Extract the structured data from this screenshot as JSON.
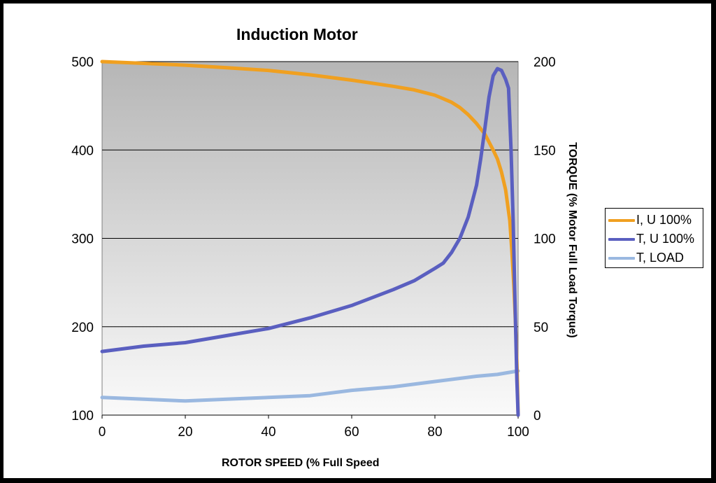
{
  "chart_data": {
    "type": "line",
    "title": "Induction Motor",
    "xlabel": "ROTOR SPEED (% Full Speed",
    "ylabel": "",
    "y2label": "TORQUE (% Motor Full Load Torque)",
    "xlim": [
      0,
      100
    ],
    "ylim": [
      100,
      500
    ],
    "y2lim": [
      0,
      200
    ],
    "xticks": [
      "0",
      "20",
      "40",
      "60",
      "80",
      "100"
    ],
    "yticks": [
      "100",
      "200",
      "300",
      "400",
      "500"
    ],
    "y2ticks": [
      "0",
      "50",
      "100",
      "150",
      "200"
    ],
    "grid": true,
    "legend_position": "right",
    "series": [
      {
        "name": "I, U 100%",
        "axis": "left",
        "color": "#F0A020",
        "points": [
          [
            0,
            500
          ],
          [
            10,
            498
          ],
          [
            20,
            496
          ],
          [
            30,
            493
          ],
          [
            40,
            490
          ],
          [
            50,
            485
          ],
          [
            60,
            479
          ],
          [
            70,
            472
          ],
          [
            75,
            468
          ],
          [
            80,
            462
          ],
          [
            82,
            458
          ],
          [
            84,
            454
          ],
          [
            86,
            448
          ],
          [
            88,
            440
          ],
          [
            90,
            430
          ],
          [
            92,
            418
          ],
          [
            94,
            400
          ],
          [
            95,
            390
          ],
          [
            96,
            375
          ],
          [
            97,
            355
          ],
          [
            98,
            320
          ],
          [
            98.5,
            285
          ],
          [
            99,
            245
          ],
          [
            99.5,
            190
          ],
          [
            99.8,
            145
          ],
          [
            100,
            100
          ]
        ]
      },
      {
        "name": "T, U 100%",
        "axis": "right",
        "color": "#5A5FC0",
        "points": [
          [
            0,
            36
          ],
          [
            10,
            39
          ],
          [
            20,
            41
          ],
          [
            30,
            45
          ],
          [
            40,
            49
          ],
          [
            50,
            55
          ],
          [
            60,
            62
          ],
          [
            70,
            71
          ],
          [
            75,
            76
          ],
          [
            80,
            83
          ],
          [
            82,
            86
          ],
          [
            84,
            92
          ],
          [
            86,
            100
          ],
          [
            88,
            112
          ],
          [
            90,
            130
          ],
          [
            91,
            145
          ],
          [
            92,
            162
          ],
          [
            93,
            180
          ],
          [
            94,
            192
          ],
          [
            95,
            196
          ],
          [
            96,
            195
          ],
          [
            97,
            190
          ],
          [
            97.7,
            185
          ],
          [
            98.3,
            150
          ],
          [
            98.8,
            110
          ],
          [
            99.3,
            60
          ],
          [
            99.7,
            20
          ],
          [
            100,
            0
          ]
        ]
      },
      {
        "name": "T, LOAD",
        "axis": "right",
        "color": "#9AB8E0",
        "points": [
          [
            0,
            10
          ],
          [
            10,
            9
          ],
          [
            20,
            8
          ],
          [
            30,
            9
          ],
          [
            40,
            10
          ],
          [
            50,
            11
          ],
          [
            60,
            14
          ],
          [
            70,
            16
          ],
          [
            80,
            19
          ],
          [
            90,
            22
          ],
          [
            95,
            23
          ],
          [
            100,
            25
          ]
        ]
      }
    ]
  }
}
